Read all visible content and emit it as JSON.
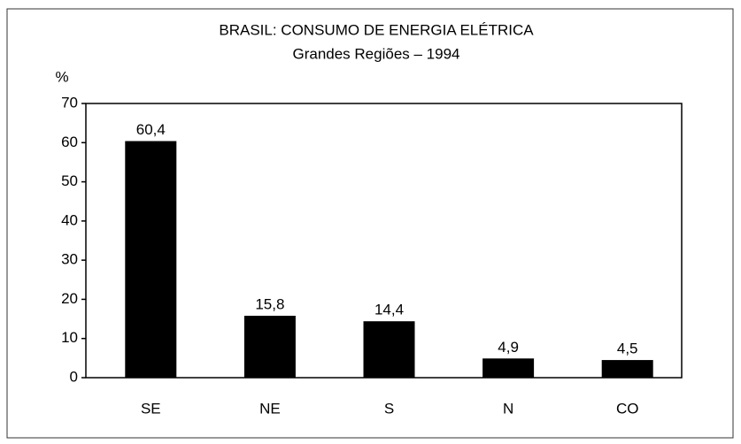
{
  "chart_data": {
    "type": "bar",
    "title": "BRASIL: CONSUMO DE ENERGIA ELÉTRICA",
    "subtitle": "Grandes Regiões – 1994",
    "y_label": "%",
    "categories": [
      "SE",
      "NE",
      "S",
      "N",
      "CO"
    ],
    "values": [
      60.4,
      15.8,
      14.4,
      4.9,
      4.5
    ],
    "value_labels": [
      "60,4",
      "15,8",
      "14,4",
      "4,9",
      "4,5"
    ],
    "color": "#000000",
    "ylim": [
      0,
      70
    ],
    "yticks": [
      0,
      10,
      20,
      30,
      40,
      50,
      60,
      70
    ],
    "grid": false
  }
}
